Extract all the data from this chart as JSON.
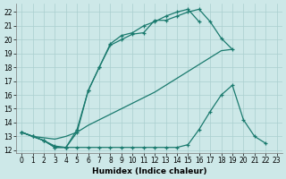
{
  "xlabel": "Humidex (Indice chaleur)",
  "background_color": "#cde8e8",
  "grid_color": "#aacfcf",
  "line_color": "#1a7a6e",
  "xlim": [
    -0.5,
    23.5
  ],
  "ylim": [
    11.8,
    22.6
  ],
  "yticks": [
    12,
    13,
    14,
    15,
    16,
    17,
    18,
    19,
    20,
    21,
    22
  ],
  "xticks": [
    0,
    1,
    2,
    3,
    4,
    5,
    6,
    7,
    8,
    9,
    10,
    11,
    12,
    13,
    14,
    15,
    16,
    17,
    18,
    19,
    20,
    21,
    22,
    23
  ],
  "series": [
    {
      "x": [
        0,
        1,
        2,
        3,
        4,
        5,
        6,
        7,
        8,
        9,
        10,
        11,
        12,
        13,
        14,
        15,
        16,
        17,
        18,
        19
      ],
      "y": [
        13.3,
        13.0,
        12.7,
        12.2,
        12.2,
        13.3,
        16.3,
        18.0,
        19.6,
        20.0,
        20.4,
        20.5,
        21.4,
        21.4,
        21.7,
        22.0,
        22.2,
        21.3,
        20.1,
        19.3
      ],
      "marker": true
    },
    {
      "x": [
        0,
        1,
        2,
        3,
        4,
        5,
        6,
        7,
        8,
        9,
        10,
        11,
        12,
        13,
        14,
        15,
        16
      ],
      "y": [
        13.3,
        13.0,
        12.7,
        12.3,
        12.2,
        13.5,
        16.3,
        18.0,
        19.7,
        20.3,
        20.5,
        21.0,
        21.3,
        21.7,
        22.0,
        22.2,
        21.3
      ],
      "marker": true
    },
    {
      "x": [
        0,
        1,
        2,
        3,
        4,
        5,
        6,
        7,
        8,
        9,
        10,
        11,
        12,
        13,
        14,
        15,
        16,
        17,
        18,
        19,
        20,
        21,
        22
      ],
      "y": [
        13.3,
        13.0,
        12.7,
        12.2,
        12.2,
        12.2,
        12.2,
        12.2,
        12.2,
        12.2,
        12.2,
        12.2,
        12.2,
        12.2,
        12.2,
        12.4,
        13.5,
        14.8,
        16.0,
        16.7,
        14.2,
        13.0,
        12.5
      ],
      "marker": true
    },
    {
      "x": [
        0,
        1,
        2,
        3,
        4,
        5,
        6,
        7,
        8,
        9,
        10,
        11,
        12,
        13,
        14,
        15,
        16,
        17,
        18,
        19
      ],
      "y": [
        13.3,
        13.0,
        12.9,
        12.8,
        13.0,
        13.3,
        13.8,
        14.2,
        14.6,
        15.0,
        15.4,
        15.8,
        16.2,
        16.7,
        17.2,
        17.7,
        18.2,
        18.7,
        19.2,
        19.3
      ],
      "marker": false
    }
  ]
}
